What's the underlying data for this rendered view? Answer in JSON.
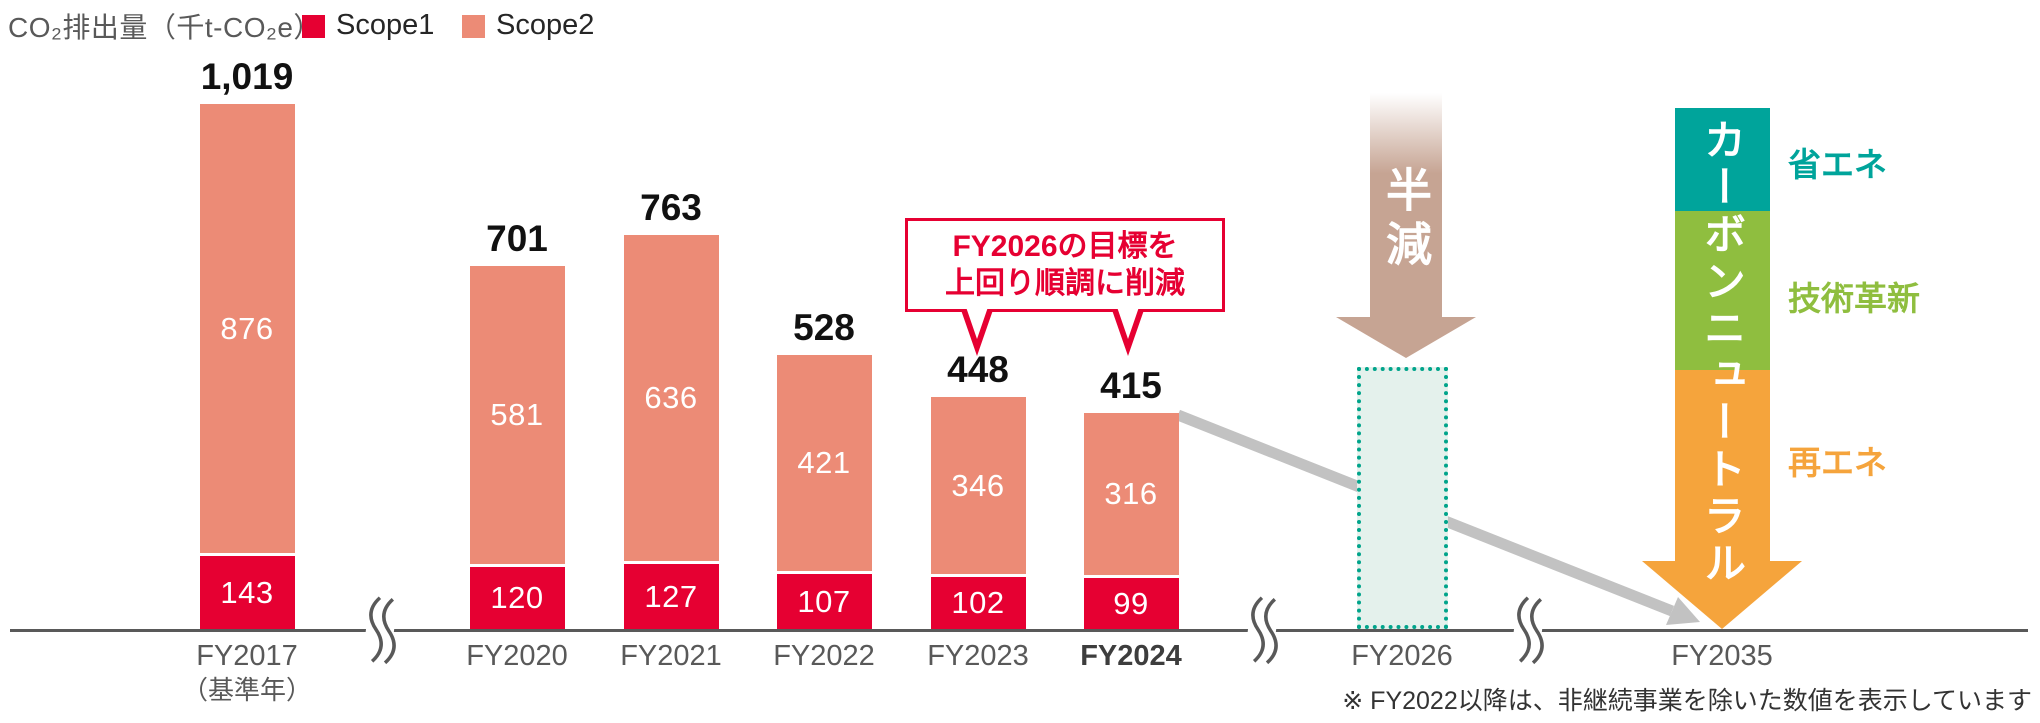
{
  "chart_data": {
    "type": "bar",
    "stacked": true,
    "ylabel": "CO₂排出量（千t-CO₂e）",
    "xlabel": "",
    "ylim": [
      0,
      1100
    ],
    "grid": false,
    "legend_position": "top-left",
    "categories": [
      "FY2017",
      "FY2020",
      "FY2021",
      "FY2022",
      "FY2023",
      "FY2024"
    ],
    "category_notes": [
      "（基準年）",
      "",
      "",
      "",
      "",
      ""
    ],
    "series": [
      {
        "name": "Scope1",
        "color": "#e60032",
        "values": [
          143,
          120,
          127,
          107,
          102,
          99
        ]
      },
      {
        "name": "Scope2",
        "color": "#ec8b76",
        "values": [
          876,
          581,
          636,
          421,
          346,
          316
        ]
      }
    ],
    "totals": [
      "1,019",
      "701",
      "763",
      "528",
      "448",
      "415"
    ],
    "annotation": {
      "line1": "FY2026の目標を",
      "line2": "上回り順調に削減"
    },
    "fy2026": {
      "axis_label": "FY2026",
      "arrow_label": "半減",
      "target_value_estimate": 510
    },
    "fy2035": {
      "axis_label": "FY2035",
      "arrow_text": "カーボンニュートラル",
      "measures": [
        {
          "label": "省エネ",
          "color": "#00a49b"
        },
        {
          "label": "技術革新",
          "color": "#8fbe3f"
        },
        {
          "label": "再エネ",
          "color": "#f5a43c"
        }
      ]
    },
    "footnote": "※ FY2022以降は、非継続事業を除いた数値を表示しています"
  },
  "colors": {
    "scope1": "#e60032",
    "scope2": "#ec8b76",
    "halve_arrow": "#c6a493",
    "target_fill": "#e4f1ec",
    "target_border": "#00a48b",
    "trend_arrow": "#c2c2c2",
    "axis": "#595959",
    "annotation_red": "#e60032",
    "cn_head": "#f5a43c"
  }
}
